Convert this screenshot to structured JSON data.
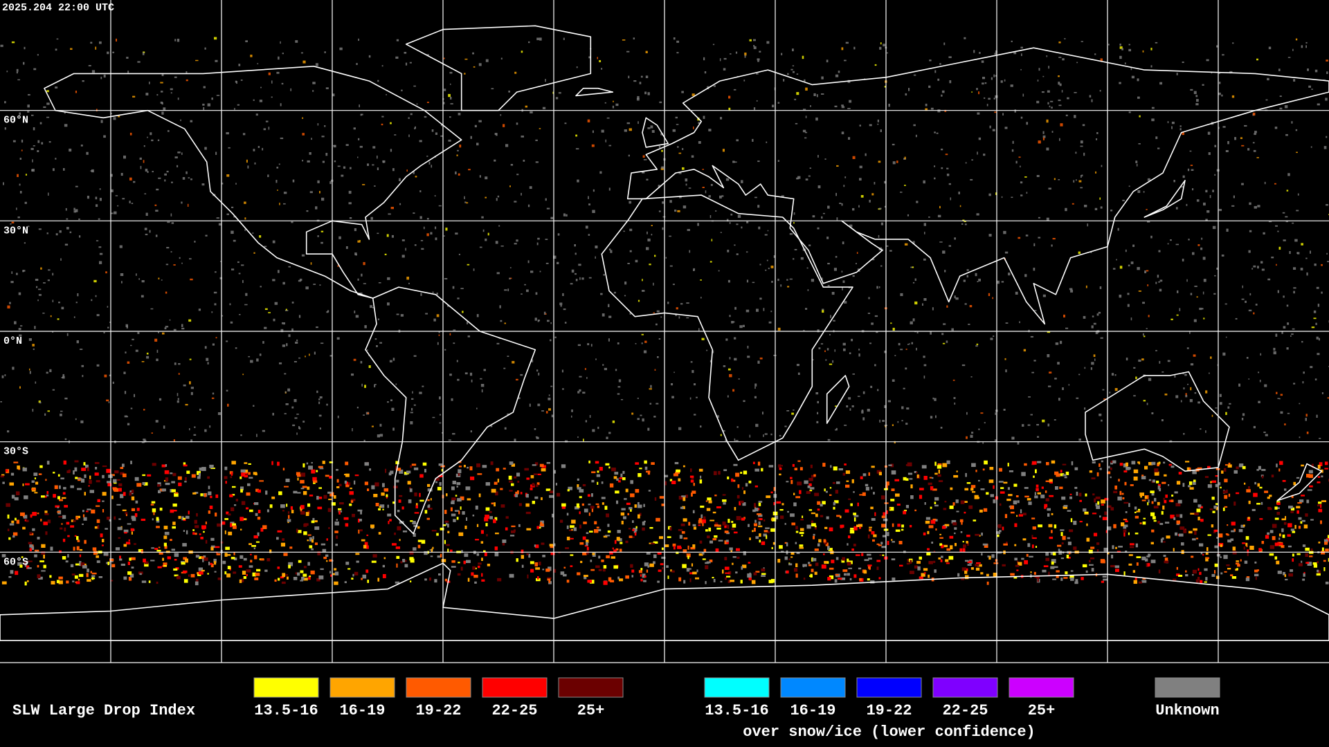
{
  "header": {
    "timestamp": "2025.204 22:00 UTC"
  },
  "map": {
    "latitude_labels": [
      "60°N",
      "30°N",
      "0°N",
      "30°S",
      "60°S"
    ]
  },
  "legend": {
    "title": "SLW Large Drop Index",
    "groups": [
      {
        "items": [
          {
            "label": "13.5-16",
            "color": "#ffff00"
          },
          {
            "label": "16-19",
            "color": "#ffa500"
          },
          {
            "label": "19-22",
            "color": "#ff5a00"
          },
          {
            "label": "22-25",
            "color": "#ff0000"
          },
          {
            "label": "25+",
            "color": "#6b0000"
          }
        ]
      },
      {
        "items": [
          {
            "label": "13.5-16",
            "color": "#00ffff"
          },
          {
            "label": "16-19",
            "color": "#0088ff"
          },
          {
            "label": "19-22",
            "color": "#0000ff"
          },
          {
            "label": "22-25",
            "color": "#7f00ff"
          },
          {
            "label": "25+",
            "color": "#cc00ff"
          }
        ],
        "note": "over snow/ice (lower confidence)"
      },
      {
        "items": [
          {
            "label": "Unknown",
            "color": "#808080"
          }
        ]
      }
    ]
  }
}
